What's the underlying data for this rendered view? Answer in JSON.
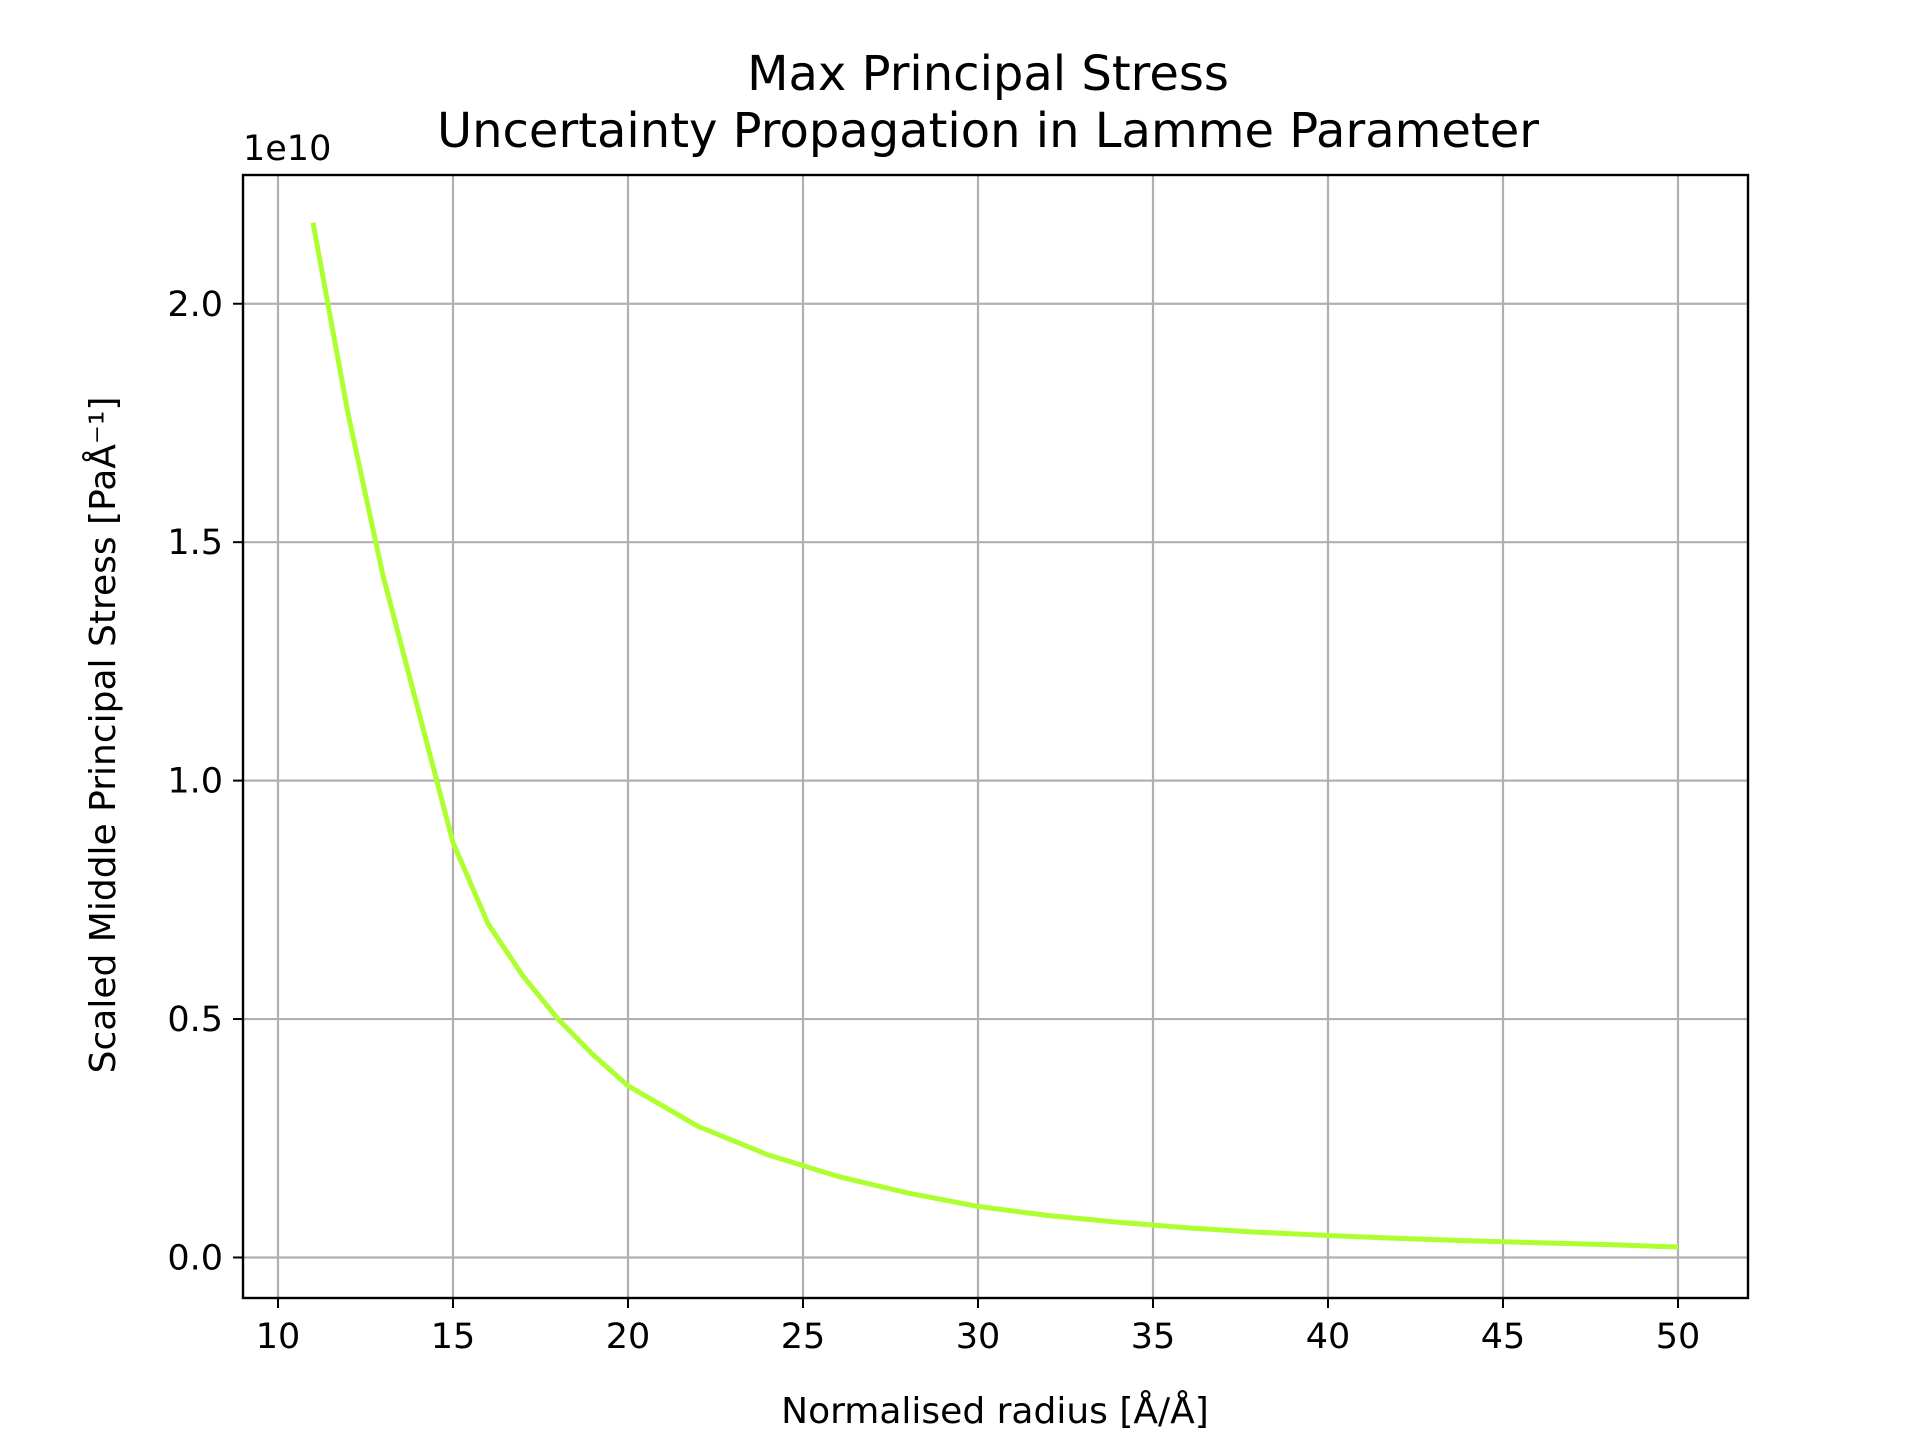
{
  "chart_data": {
    "type": "line",
    "title": "Max Principal Stress",
    "subtitle": "Uncertainty Propagation in Lamme Parameter",
    "xlabel": "Normalised radius [Å/Å]",
    "ylabel": "Scaled Middle Principal Stress [PaÅ⁻¹]",
    "y_offset_label": "1e10",
    "xlim": [
      9,
      52
    ],
    "ylim": [
      -0.085,
      2.27
    ],
    "x_ticks": [
      10,
      15,
      20,
      25,
      30,
      35,
      40,
      45,
      50
    ],
    "x_tick_labels": [
      "10",
      "15",
      "20",
      "25",
      "30",
      "35",
      "40",
      "45",
      "50"
    ],
    "y_ticks": [
      0.0,
      0.5,
      1.0,
      1.5,
      2.0
    ],
    "y_tick_labels": [
      "0.0",
      "0.5",
      "1.0",
      "1.5",
      "2.0"
    ],
    "grid": true,
    "series": [
      {
        "color": "#adff2f",
        "x": [
          11,
          12,
          13,
          14,
          15,
          16,
          17,
          18,
          19,
          20,
          22,
          24,
          26,
          28,
          30,
          32,
          34,
          36,
          38,
          40,
          42,
          44,
          46,
          48,
          50
        ],
        "y": [
          2.17,
          1.77,
          1.43,
          1.15,
          0.87,
          0.7,
          0.59,
          0.5,
          0.425,
          0.36,
          0.275,
          0.215,
          0.17,
          0.135,
          0.107,
          0.088,
          0.074,
          0.062,
          0.053,
          0.046,
          0.04,
          0.035,
          0.031,
          0.027,
          0.022
        ]
      }
    ]
  }
}
